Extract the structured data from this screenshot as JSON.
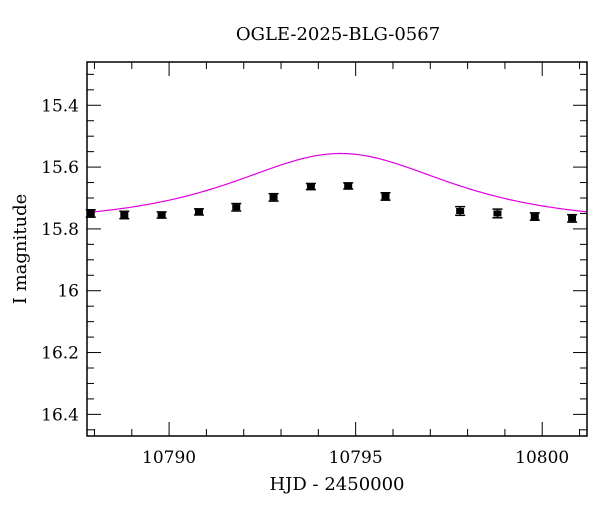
{
  "chart_data": {
    "type": "scatter",
    "title": "OGLE-2025-BLG-0567",
    "xlabel": "HJD - 2450000",
    "ylabel": "I magnitude",
    "xlim": [
      10787.8,
      10801.2
    ],
    "ylim": [
      16.47,
      15.26
    ],
    "y_inverted": true,
    "grid": false,
    "x_major_ticks": [
      10790,
      10795,
      10800
    ],
    "x_tick_labels": [
      "10790",
      "10795",
      "10800"
    ],
    "x_minor_step": 1,
    "y_major_ticks": [
      15.4,
      15.6,
      15.8,
      16.0,
      16.2,
      16.4
    ],
    "y_tick_labels": [
      "15.4",
      "15.6",
      "15.8",
      "16",
      "16.2",
      "16.4"
    ],
    "y_minor_step": 0.05,
    "series": [
      {
        "kind": "points",
        "color": "#000000",
        "x": [
          10787.9,
          10788.8,
          10789.8,
          10790.8,
          10791.8,
          10792.8,
          10793.8,
          10794.8,
          10795.8,
          10797.8,
          10798.8,
          10799.8,
          10800.8
        ],
        "y": [
          15.75,
          15.755,
          15.755,
          15.745,
          15.73,
          15.698,
          15.663,
          15.661,
          15.695,
          15.742,
          15.75,
          15.76,
          15.766
        ],
        "yerr": [
          0.012,
          0.012,
          0.01,
          0.01,
          0.012,
          0.012,
          0.01,
          0.01,
          0.012,
          0.014,
          0.014,
          0.012,
          0.012
        ]
      },
      {
        "kind": "model",
        "color": "#e000e0",
        "t0": 10794.6,
        "u0": 1.2,
        "tE": 3.1,
        "baseline": 15.78
      }
    ]
  }
}
